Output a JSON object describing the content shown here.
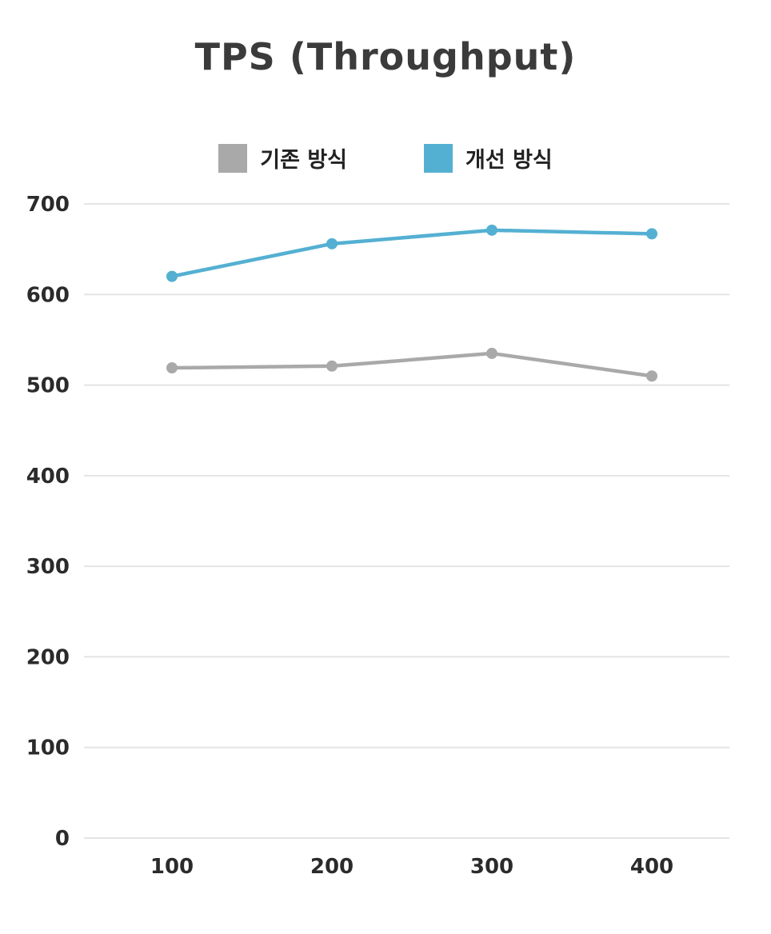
{
  "title": "TPS (Throughput)",
  "legend": [
    {
      "label": "기존 방식",
      "color": "#a9a9a9"
    },
    {
      "label": "개선 방식",
      "color": "#54b0d2"
    }
  ],
  "colors": {
    "grid": "#e4e4e4",
    "text": "#2b2b2b",
    "title": "#3b3b3b",
    "background": "#ffffff"
  },
  "chart_data": {
    "type": "line",
    "title": "TPS (Throughput)",
    "x": [
      100,
      200,
      300,
      400
    ],
    "series": [
      {
        "name": "기존 방식",
        "color": "#a9a9a9",
        "values": [
          519,
          521,
          535,
          510
        ]
      },
      {
        "name": "개선 방식",
        "color": "#54b0d2",
        "values": [
          620,
          656,
          671,
          667
        ]
      }
    ],
    "ylim": [
      0,
      700
    ],
    "yticks": [
      0,
      100,
      200,
      300,
      400,
      500,
      600,
      700
    ],
    "grid": true,
    "legend_position": "top",
    "xlabel": "",
    "ylabel": ""
  }
}
